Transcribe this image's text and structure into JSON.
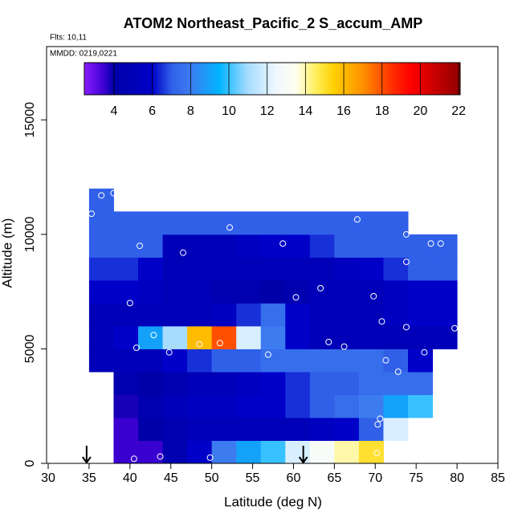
{
  "chart_data": {
    "type": "heatmap",
    "title": "ATOM2 Northeast_Pacific_2 S_accum_AMP",
    "flights_label": "Flts: 10,11",
    "dates_label": "MMDD: 0219,0221",
    "x_label": "Latitude (deg N)",
    "y_label": "Altitude (m)",
    "xlim": [
      30,
      85
    ],
    "xticks": [
      30,
      35,
      40,
      45,
      50,
      55,
      60,
      65,
      70,
      75,
      80,
      85
    ],
    "ylim": [
      0,
      18200
    ],
    "yticks": [
      0,
      5000,
      10000,
      15000
    ],
    "x_edges": [
      35,
      38,
      41,
      44,
      47,
      50,
      53,
      56,
      59,
      62,
      65,
      68,
      71,
      74,
      77,
      80
    ],
    "y_edges": [
      0,
      1000,
      2000,
      3000,
      4000,
      5000,
      6000,
      7000,
      8000,
      9000,
      10000,
      11000,
      12000
    ],
    "z": [
      [
        null,
        3.5,
        3.5,
        4.5,
        6,
        8,
        9,
        10,
        12,
        13,
        14,
        15,
        null,
        null,
        null
      ],
      [
        null,
        3.5,
        4,
        4.5,
        5,
        5,
        5,
        5,
        5,
        5.5,
        6,
        7,
        12,
        null,
        null
      ],
      [
        null,
        3.8,
        4.5,
        5,
        5.5,
        5.5,
        6,
        6,
        6.5,
        7,
        7.5,
        8,
        9,
        10,
        null
      ],
      [
        null,
        4.5,
        4,
        4.5,
        5,
        5,
        5.5,
        6,
        6.5,
        7,
        7,
        7.5,
        7.5,
        7.5,
        null
      ],
      [
        5,
        5,
        5,
        6,
        6.5,
        7,
        7,
        7.5,
        7.5,
        7.5,
        7.5,
        7.5,
        7,
        6,
        null
      ],
      [
        5,
        6,
        9,
        11,
        16,
        18,
        12,
        8,
        6,
        5,
        5,
        5,
        5,
        5,
        5
      ],
      [
        5,
        5,
        5,
        5,
        5,
        5.5,
        6.5,
        7.5,
        6,
        5,
        5,
        5,
        5.5,
        6,
        6
      ],
      [
        6,
        6,
        5.5,
        5,
        5,
        4.5,
        4.5,
        4,
        4.5,
        5,
        5,
        5,
        5.5,
        6,
        6
      ],
      [
        6.5,
        6.5,
        6,
        5,
        5,
        5,
        5,
        5,
        5,
        5,
        5.5,
        6,
        6.5,
        7,
        7
      ],
      [
        7,
        7,
        7,
        5,
        5,
        5,
        5.5,
        6,
        6,
        6.5,
        7,
        7,
        7,
        7,
        7
      ],
      [
        7,
        7,
        7,
        7,
        7,
        7,
        7,
        7,
        7,
        7,
        7,
        7,
        7,
        null,
        null
      ],
      [
        7,
        null,
        null,
        null,
        null,
        null,
        null,
        null,
        null,
        null,
        null,
        null,
        null,
        null,
        null
      ]
    ],
    "clim": [
      2.45,
      22.08
    ],
    "cticks": [
      4,
      6,
      8,
      10,
      12,
      14,
      16,
      18,
      20,
      22
    ],
    "colorscale": [
      [
        2.45,
        "#8a1cff"
      ],
      [
        3.5,
        "#3a00d0"
      ],
      [
        4,
        "#0000a8"
      ],
      [
        6,
        "#0000c8"
      ],
      [
        7,
        "#3060e8"
      ],
      [
        8,
        "#3c7cf0"
      ],
      [
        9.5,
        "#00b4ff"
      ],
      [
        11,
        "#a8dcff"
      ],
      [
        12.5,
        "#f0f8ff"
      ],
      [
        13.5,
        "#fffff0"
      ],
      [
        14.5,
        "#fff060"
      ],
      [
        15.5,
        "#ffd000"
      ],
      [
        17,
        "#ff9000"
      ],
      [
        18.5,
        "#ff3000"
      ],
      [
        19.5,
        "#ff0000"
      ],
      [
        22.08,
        "#900000"
      ]
    ],
    "samples": {
      "x": [
        36.5,
        38,
        39,
        35.3,
        41.2,
        46.5,
        52.2,
        58.7,
        67.8,
        73.8,
        76.8,
        78,
        73.8,
        63.3,
        60.3,
        69.8,
        70.8,
        40,
        42.9,
        73.8,
        79.7,
        64.3,
        66.2,
        40.8,
        44.8,
        48.5,
        51,
        56.9,
        76,
        71.3,
        72.8,
        70.6,
        70.3,
        70.2,
        40.5,
        43.7,
        49.8
      ],
      "y": [
        11700,
        11800,
        11750,
        10900,
        9500,
        9200,
        10300,
        9600,
        10650,
        10000,
        9600,
        9600,
        8800,
        7650,
        7250,
        7300,
        6200,
        7000,
        5600,
        5950,
        5900,
        5300,
        5100,
        5050,
        4850,
        5200,
        5250,
        4750,
        4850,
        4500,
        4000,
        1950,
        1700,
        450,
        200,
        300,
        250
      ],
      "color": "#ffffff"
    },
    "arrows_x": [
      34.7,
      61.2
    ]
  }
}
